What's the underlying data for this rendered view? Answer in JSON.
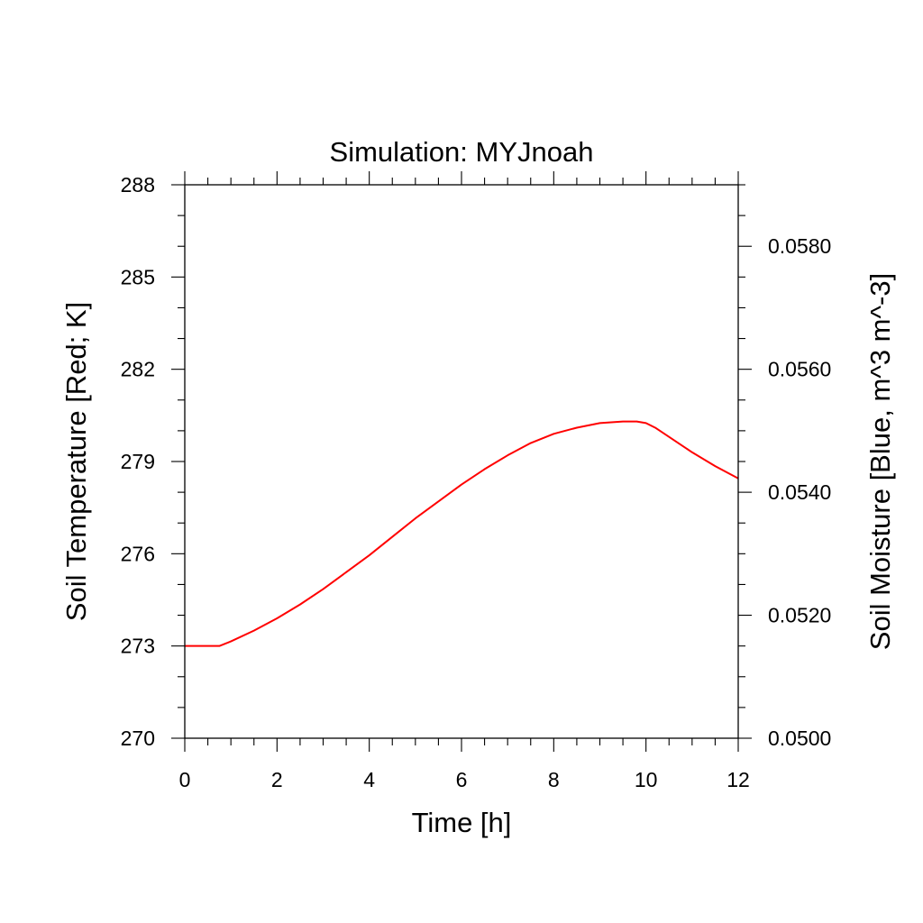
{
  "chart_data": {
    "type": "line",
    "title": "Simulation: MYJnoah",
    "xlabel": "Time [h]",
    "ylabel_left": "Soil Temperature [Red; K]",
    "ylabel_right": "Soil Moisture [Blue, m^3 m^-3]",
    "xlim": [
      0,
      12
    ],
    "ylim_left": [
      270,
      288
    ],
    "ylim_right": [
      0.05,
      0.059
    ],
    "x_ticks": [
      0,
      2,
      4,
      6,
      8,
      10,
      12
    ],
    "x_tick_labels": [
      "0",
      "2",
      "4",
      "6",
      "8",
      "10",
      "12"
    ],
    "y_left_ticks": [
      270,
      273,
      276,
      279,
      282,
      285,
      288
    ],
    "y_left_tick_labels": [
      "270",
      "273",
      "276",
      "279",
      "282",
      "285",
      "288"
    ],
    "y_right_ticks": [
      0.05,
      0.052,
      0.054,
      0.056,
      0.058
    ],
    "y_right_tick_labels": [
      "0.0500",
      "0.0520",
      "0.0540",
      "0.0560",
      "0.0580"
    ],
    "grid": false,
    "series": [
      {
        "axis": "left",
        "color": "#ff0000",
        "x": [
          0,
          0.5,
          0.75,
          1,
          1.5,
          2,
          2.5,
          3,
          3.5,
          4,
          4.5,
          5,
          5.5,
          6,
          6.5,
          7,
          7.5,
          8,
          8.5,
          9,
          9.5,
          9.8,
          10,
          10.2,
          10.5,
          11,
          11.5,
          12
        ],
        "y": [
          273.0,
          273.0,
          273.0,
          273.15,
          273.5,
          273.9,
          274.35,
          274.85,
          275.4,
          275.95,
          276.55,
          277.15,
          277.7,
          278.25,
          278.75,
          279.2,
          279.6,
          279.9,
          280.1,
          280.25,
          280.3,
          280.3,
          280.25,
          280.1,
          279.8,
          279.3,
          278.85,
          278.45
        ]
      }
    ]
  }
}
